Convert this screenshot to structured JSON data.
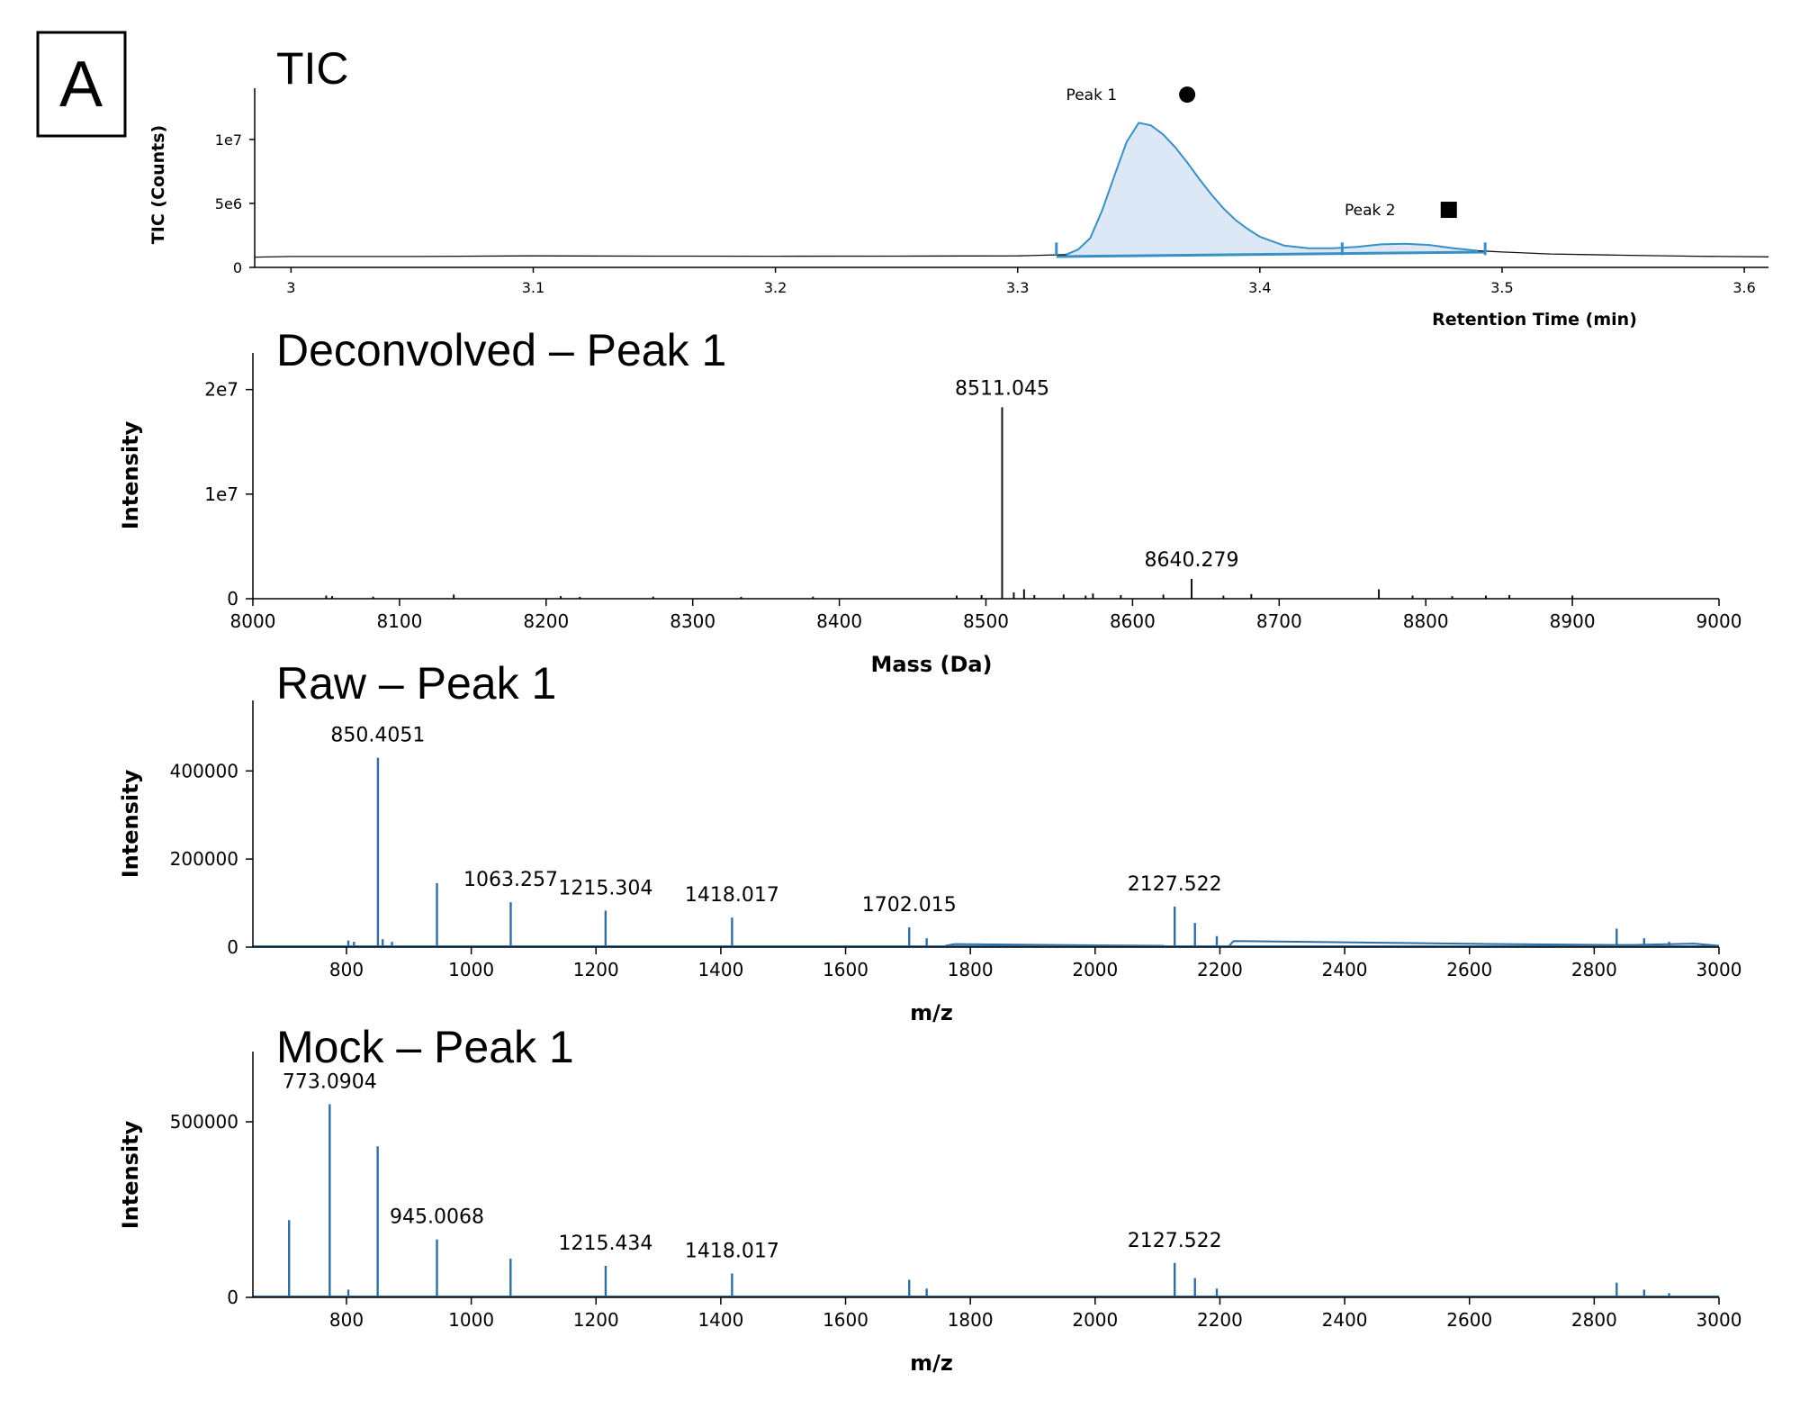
{
  "figure_label": "A",
  "chart_data": [
    {
      "id": "tic",
      "type": "area",
      "title": "TIC",
      "xlabel": "Retention Time (min)",
      "ylabel": "TIC (Counts)",
      "xlim": [
        2.985,
        3.61
      ],
      "ylim": [
        0,
        14000000
      ],
      "xticks": [
        3,
        3.1,
        3.2,
        3.3,
        3.4,
        3.5,
        3.6
      ],
      "xtick_labels": [
        "3",
        "3.1",
        "3.2",
        "3.3",
        "3.4",
        "3.5",
        "3.6"
      ],
      "yticks": [
        0,
        5000000,
        10000000
      ],
      "ytick_labels": [
        "0",
        "5e6",
        "1e7"
      ],
      "series": [
        {
          "x": [
            2.985,
            3.0,
            3.05,
            3.1,
            3.15,
            3.2,
            3.25,
            3.3,
            3.31,
            3.32,
            3.325,
            3.33,
            3.335,
            3.34,
            3.345,
            3.35,
            3.355,
            3.36,
            3.365,
            3.37,
            3.375,
            3.38,
            3.385,
            3.39,
            3.395,
            3.4,
            3.41,
            3.42,
            3.43,
            3.44,
            3.45,
            3.46,
            3.47,
            3.48,
            3.49,
            3.5,
            3.52,
            3.55,
            3.58,
            3.61
          ],
          "y": [
            800000,
            850000,
            850000,
            900000,
            880000,
            870000,
            880000,
            900000,
            950000,
            1000000,
            1400000,
            2300000,
            4500000,
            7200000,
            9800000,
            11300000,
            11100000,
            10400000,
            9400000,
            8200000,
            6900000,
            5700000,
            4600000,
            3700000,
            3000000,
            2400000,
            1700000,
            1500000,
            1500000,
            1600000,
            1800000,
            1850000,
            1750000,
            1500000,
            1300000,
            1200000,
            1050000,
            950000,
            870000,
            820000
          ]
        }
      ],
      "integration_markers_x": [
        3.316,
        3.434,
        3.493
      ],
      "annotations": [
        {
          "text": "Peak 1",
          "x": 3.32,
          "y": 13500000,
          "marker": "circle",
          "marker_x": 3.37
        },
        {
          "text": "Peak 2",
          "x": 3.435,
          "y": 4500000,
          "marker": "square",
          "marker_x": 3.478
        }
      ],
      "grid": false
    },
    {
      "id": "deconvolved",
      "type": "bar",
      "title": "Deconvolved – Peak 1",
      "xlabel": "Mass (Da)",
      "ylabel": "Intensity",
      "xlim": [
        8000,
        9000
      ],
      "ylim": [
        0,
        23500000
      ],
      "xticks": [
        8000,
        8100,
        8200,
        8300,
        8400,
        8500,
        8600,
        8700,
        8800,
        8900,
        9000
      ],
      "yticks": [
        0,
        10000000,
        20000000
      ],
      "ytick_labels": [
        "0",
        "1e7",
        "2e7"
      ],
      "x": [
        8050,
        8054,
        8082,
        8137,
        8210,
        8223,
        8273,
        8333,
        8382,
        8480,
        8497,
        8511.045,
        8519,
        8526,
        8533,
        8553,
        8568,
        8573,
        8592,
        8621,
        8640.279,
        8662,
        8681,
        8768,
        8791,
        8818,
        8841,
        8857,
        8900
      ],
      "y": [
        300000,
        250000,
        200000,
        400000,
        250000,
        180000,
        200000,
        180000,
        200000,
        300000,
        350000,
        18300000,
        600000,
        900000,
        350000,
        400000,
        300000,
        500000,
        350000,
        400000,
        1900000,
        300000,
        450000,
        900000,
        300000,
        250000,
        300000,
        350000,
        300000
      ],
      "annotations": [
        {
          "text": "8511.045",
          "x": 8511.045,
          "y": 18300000
        },
        {
          "text": "8640.279",
          "x": 8640.279,
          "y": 1900000
        }
      ],
      "grid": false
    },
    {
      "id": "raw",
      "type": "line",
      "title": "Raw – Peak 1",
      "xlabel": "m/z",
      "ylabel": "Intensity",
      "xlim": [
        650,
        3000
      ],
      "ylim": [
        0,
        560000
      ],
      "xticks": [
        800,
        1000,
        1200,
        1400,
        1600,
        1800,
        2000,
        2200,
        2400,
        2600,
        2800,
        3000
      ],
      "yticks": [
        0,
        200000,
        400000
      ],
      "peaks": [
        {
          "x": 803,
          "y": 15000
        },
        {
          "x": 812,
          "y": 12000
        },
        {
          "x": 850.4051,
          "y": 430000
        },
        {
          "x": 858,
          "y": 18000
        },
        {
          "x": 873,
          "y": 12000
        },
        {
          "x": 945,
          "y": 145000
        },
        {
          "x": 1063.257,
          "y": 102000
        },
        {
          "x": 1215.304,
          "y": 83000
        },
        {
          "x": 1418.017,
          "y": 67000
        },
        {
          "x": 1702.015,
          "y": 45000
        },
        {
          "x": 1730,
          "y": 20000
        },
        {
          "x": 2127.522,
          "y": 92000
        },
        {
          "x": 2160,
          "y": 55000
        },
        {
          "x": 2195,
          "y": 25000
        },
        {
          "x": 2836,
          "y": 42000
        },
        {
          "x": 2880,
          "y": 20000
        },
        {
          "x": 2920,
          "y": 12000
        }
      ],
      "segments": [
        {
          "x": [
            1760,
            1775,
            2000,
            2110
          ],
          "y": [
            3000,
            7000,
            4000,
            3000
          ]
        },
        {
          "x": [
            2215,
            2222,
            2600,
            2830,
            2860,
            2960,
            3000
          ],
          "y": [
            3000,
            14000,
            7500,
            5000,
            5000,
            8000,
            3000
          ]
        }
      ],
      "annotations": [
        {
          "text": "850.4051",
          "x": 850.4051,
          "y": 430000
        },
        {
          "text": "1063.257",
          "x": 1063.257,
          "y": 102000
        },
        {
          "text": "1215.304",
          "x": 1215.304,
          "y": 83000
        },
        {
          "text": "1418.017",
          "x": 1418.017,
          "y": 67000
        },
        {
          "text": "1702.015",
          "x": 1702.015,
          "y": 45000
        },
        {
          "text": "2127.522",
          "x": 2127.522,
          "y": 92000
        }
      ],
      "grid": false
    },
    {
      "id": "mock",
      "type": "line",
      "title": "Mock – Peak 1",
      "xlabel": "m/z",
      "ylabel": "Intensity",
      "xlim": [
        650,
        3000
      ],
      "ylim": [
        0,
        700000
      ],
      "xticks": [
        800,
        1000,
        1200,
        1400,
        1600,
        1800,
        2000,
        2200,
        2400,
        2600,
        2800,
        3000
      ],
      "yticks": [
        0,
        500000
      ],
      "peaks": [
        {
          "x": 708,
          "y": 220000
        },
        {
          "x": 773.0904,
          "y": 550000
        },
        {
          "x": 803,
          "y": 22000
        },
        {
          "x": 850,
          "y": 430000
        },
        {
          "x": 945.0068,
          "y": 165000
        },
        {
          "x": 1063,
          "y": 110000
        },
        {
          "x": 1215.434,
          "y": 90000
        },
        {
          "x": 1418.017,
          "y": 68000
        },
        {
          "x": 1702,
          "y": 50000
        },
        {
          "x": 1730,
          "y": 25000
        },
        {
          "x": 2127.522,
          "y": 98000
        },
        {
          "x": 2160,
          "y": 55000
        },
        {
          "x": 2195,
          "y": 25000
        },
        {
          "x": 2836,
          "y": 42000
        },
        {
          "x": 2880,
          "y": 22000
        },
        {
          "x": 2920,
          "y": 12000
        }
      ],
      "segments": [],
      "annotations": [
        {
          "text": "773.0904",
          "x": 773.0904,
          "y": 550000
        },
        {
          "text": "945.0068",
          "x": 945.0068,
          "y": 165000
        },
        {
          "text": "1215.434",
          "x": 1215.434,
          "y": 90000
        },
        {
          "text": "1418.017",
          "x": 1418.017,
          "y": 68000
        },
        {
          "text": "2127.522",
          "x": 2127.522,
          "y": 98000
        }
      ],
      "grid": false
    }
  ]
}
